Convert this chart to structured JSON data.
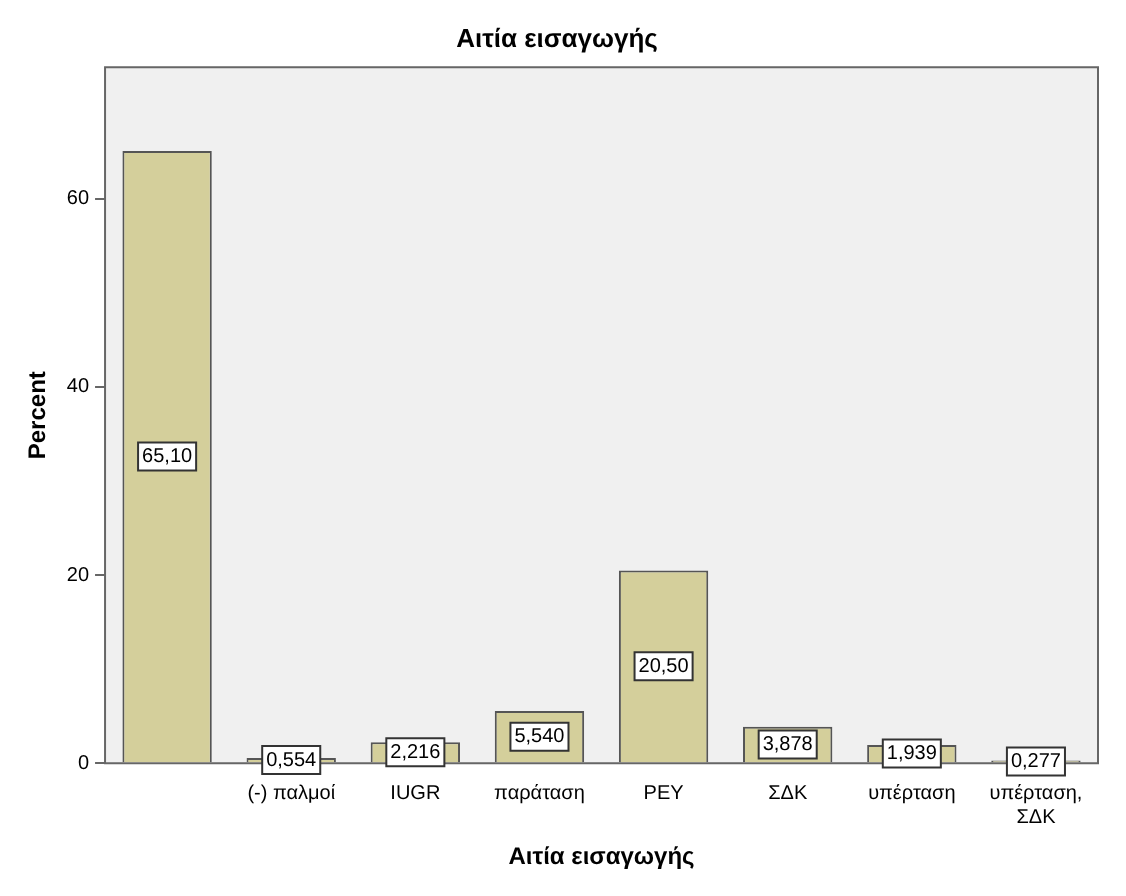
{
  "chart_data": {
    "type": "bar",
    "title": "Αιτία εισαγωγής",
    "xlabel": "Αιτία εισαγωγής",
    "ylabel": "Percent",
    "categories": [
      null,
      "(-) παλμοί",
      "IUGR",
      "παράταση",
      "ΡΕΥ",
      "ΣΔΚ",
      "υπέρταση",
      "υπέρταση, ΣΔΚ"
    ],
    "values": [
      65.1,
      0.554,
      2.216,
      5.54,
      20.5,
      3.878,
      1.939,
      0.277
    ],
    "value_labels": [
      "65,10",
      "0,554",
      "2,216",
      "5,540",
      "20,50",
      "3,878",
      "1,939",
      "0,277"
    ],
    "color": "#d4cf9b",
    "ylim": [
      0,
      74
    ],
    "yticks": [
      0,
      20,
      40,
      60
    ],
    "grid": false,
    "legend": false
  }
}
